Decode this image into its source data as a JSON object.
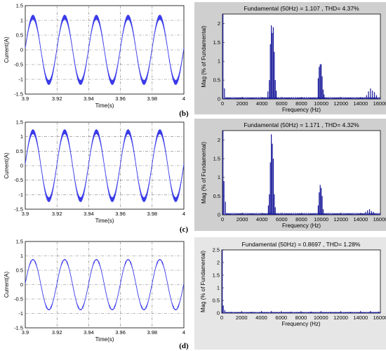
{
  "figure": {
    "captions": [
      "(b)",
      "(c)",
      "(d)"
    ]
  },
  "colors": {
    "trace": "#3a3aea",
    "spectrum": "#1a1a9a",
    "grid": "#7a7a7a",
    "panel_grey": "#cfcfcf",
    "panel_grey_d": "#e6e6e6"
  },
  "chart_data": [
    {
      "type": "line",
      "panel": "b-time",
      "xlabel": "Time(s)",
      "ylabel": "Current(A)",
      "xlim": [
        3.9,
        4.0
      ],
      "ylim": [
        -1.5,
        1.5
      ],
      "xticks": [
        "3.9",
        "3.92",
        "3.94",
        "3.96",
        "3.98",
        "4"
      ],
      "yticks": [
        "1.5",
        "1",
        "0.5",
        "0",
        "-0.5",
        "-1",
        "-1.5"
      ],
      "grid": true,
      "series": [
        {
          "frequency_hz": 50,
          "amplitude": 1.107,
          "ripple": 0.08
        }
      ]
    },
    {
      "type": "bar",
      "panel": "b-fft",
      "title": "Fundamental (50Hz) = 1.107 , THD= 4.37%",
      "xlabel": "Frequency (Hz)",
      "ylabel": "Mag (% of Fundamental)",
      "xlim": [
        0,
        16000
      ],
      "ylim": [
        0,
        2.25
      ],
      "xticks": [
        "0",
        "2000",
        "4000",
        "6000",
        "8000",
        "10000",
        "12000",
        "14000",
        "16000"
      ],
      "yticks": [
        "0",
        "0.5",
        "1",
        "1.5",
        "2"
      ],
      "grid": false,
      "x": [
        50,
        200,
        4600,
        4750,
        4850,
        4950,
        5050,
        5150,
        5250,
        5350,
        5450,
        9700,
        9800,
        9900,
        10000,
        10100,
        10200,
        10300,
        14600,
        14800,
        15000,
        15200,
        15400,
        15600
      ],
      "values": [
        2.25,
        0.28,
        0.2,
        0.5,
        1.45,
        1.95,
        1.75,
        1.9,
        1.25,
        0.5,
        0.22,
        0.55,
        0.85,
        0.92,
        0.92,
        0.6,
        0.25,
        0.12,
        0.1,
        0.2,
        0.28,
        0.22,
        0.18,
        0.1
      ]
    },
    {
      "type": "line",
      "panel": "c-time",
      "xlabel": "Time(s)",
      "ylabel": "Current(A)",
      "xlim": [
        3.9,
        4.0
      ],
      "ylim": [
        -1.5,
        1.5
      ],
      "xticks": [
        "3.9",
        "3.92",
        "3.94",
        "3.96",
        "3.98",
        "4"
      ],
      "yticks": [
        "1.5",
        "1",
        "0.5",
        "0",
        "-0.5",
        "-1",
        "-1.5"
      ],
      "grid": true,
      "series": [
        {
          "frequency_hz": 50,
          "amplitude": 1.171,
          "ripple": 0.08
        }
      ]
    },
    {
      "type": "bar",
      "panel": "c-fft",
      "title": "Fundamental (50Hz) = 1.171 , THD= 4.32%",
      "xlabel": "Frequency (Hz)",
      "ylabel": "Mag (% of Fundamental)",
      "xlim": [
        0,
        16000
      ],
      "ylim": [
        0,
        2.25
      ],
      "xticks": [
        "0",
        "2000",
        "4000",
        "6000",
        "8000",
        "10000",
        "12000",
        "14000",
        "16000"
      ],
      "yticks": [
        "0",
        "0.5",
        "1",
        "1.5",
        "2"
      ],
      "grid": false,
      "x": [
        50,
        150,
        300,
        4650,
        4750,
        4850,
        4950,
        5050,
        5150,
        5250,
        5350,
        9700,
        9800,
        9900,
        10000,
        10100,
        10200,
        14500,
        14700,
        14900,
        15100,
        15300
      ],
      "values": [
        2.25,
        0.9,
        0.35,
        0.25,
        0.55,
        1.4,
        2.15,
        1.9,
        1.5,
        0.55,
        0.2,
        0.25,
        0.6,
        0.8,
        0.72,
        0.5,
        0.15,
        0.08,
        0.12,
        0.15,
        0.1,
        0.08
      ]
    },
    {
      "type": "line",
      "panel": "d-time",
      "xlabel": "Time(s)",
      "ylabel": "Current(A)",
      "xlim": [
        3.9,
        4.0
      ],
      "ylim": [
        -1.5,
        1.5
      ],
      "xticks": [
        "3.9",
        "3.92",
        "3.94",
        "3.96",
        "3.98",
        "4"
      ],
      "yticks": [
        "1.5",
        "1",
        "0.5",
        "0",
        "-0.5",
        "-1",
        "-1.5"
      ],
      "grid": true,
      "series": [
        {
          "frequency_hz": 50,
          "amplitude": 0.8697,
          "ripple": 0.015
        }
      ]
    },
    {
      "type": "bar",
      "panel": "d-fft",
      "title": "Fundamental (50Hz) = 0.8697 , THD= 1.28%",
      "xlabel": "Frequency (Hz)",
      "ylabel": "Mag (% of Fundamental)",
      "xlim": [
        0,
        16000
      ],
      "ylim": [
        0,
        2.5
      ],
      "xticks": [
        "0",
        "2000",
        "4000",
        "6000",
        "8000",
        "10000",
        "12000",
        "14000",
        "16000"
      ],
      "yticks": [
        "0",
        "0.5",
        "1",
        "1.5",
        "2",
        "2.5"
      ],
      "grid": false,
      "x": [
        50,
        150,
        300,
        1000,
        2000,
        3000,
        4000,
        5000,
        6000,
        7000,
        8000,
        9000,
        10000,
        11000,
        12000,
        13000,
        14000,
        15000,
        15800
      ],
      "values": [
        2.5,
        0.3,
        0.12,
        0.05,
        0.06,
        0.05,
        0.07,
        0.08,
        0.05,
        0.06,
        0.05,
        0.06,
        0.07,
        0.05,
        0.06,
        0.05,
        0.07,
        0.08,
        0.06
      ]
    }
  ]
}
